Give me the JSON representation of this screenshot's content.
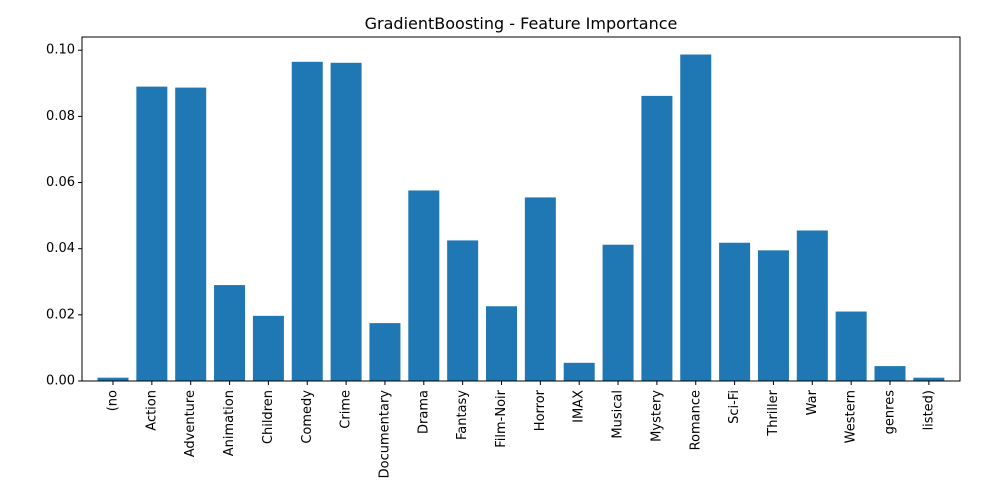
{
  "chart_data": {
    "type": "bar",
    "title": "GradientBoosting - Feature Importance",
    "xlabel": "",
    "ylabel": "",
    "categories": [
      "(no",
      "Action",
      "Adventure",
      "Animation",
      "Children",
      "Comedy",
      "Crime",
      "Documentary",
      "Drama",
      "Fantasy",
      "Film-Noir",
      "Horror",
      "IMAX",
      "Musical",
      "Mystery",
      "Romance",
      "Sci-Fi",
      "Thriller",
      "War",
      "Western",
      "genres",
      "listed)"
    ],
    "values": [
      0.001,
      0.089,
      0.0887,
      0.029,
      0.0197,
      0.0965,
      0.0962,
      0.0175,
      0.0576,
      0.0425,
      0.0226,
      0.0555,
      0.0055,
      0.0412,
      0.0862,
      0.0987,
      0.0418,
      0.0395,
      0.0455,
      0.021,
      0.0045,
      0.001
    ],
    "ylim": [
      0,
      0.104
    ],
    "yticks": [
      "0.00",
      "0.02",
      "0.04",
      "0.06",
      "0.08",
      "0.10"
    ],
    "grid": false,
    "bar_color": "#1f77b4",
    "x_tick_rotation": "vertical"
  }
}
